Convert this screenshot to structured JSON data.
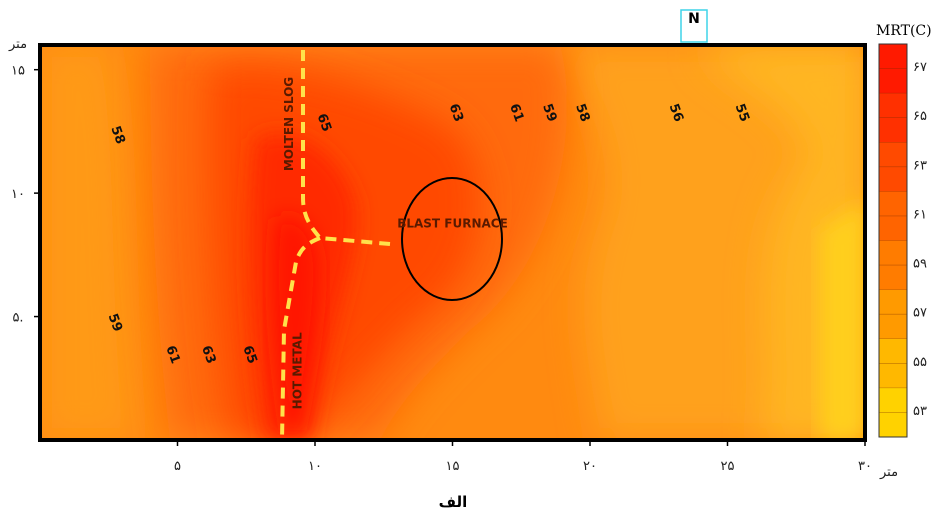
{
  "caption": "الف",
  "north_label": "N",
  "legend": {
    "title": "MRT(C)",
    "ticks": [
      "۶۷",
      "۶۵",
      "۶۳",
      "۶۱",
      "۵۹",
      "۵۷",
      "۵۵",
      "۵۳"
    ],
    "colors": [
      "#ff1a00",
      "#ff3000",
      "#ff4a00",
      "#ff6400",
      "#ff7c00",
      "#ff9a00",
      "#ffb800",
      "#ffd200"
    ]
  },
  "chart_data": {
    "type": "heatmap",
    "title": "",
    "xlabel": "متر",
    "ylabel": "متر",
    "xlim": [
      0,
      30
    ],
    "ylim": [
      0,
      16
    ],
    "x_ticks": [
      {
        "value": 5,
        "label": "۵"
      },
      {
        "value": 10,
        "label": "۱۰"
      },
      {
        "value": 15,
        "label": "۱۵"
      },
      {
        "value": 20,
        "label": "۲۰"
      },
      {
        "value": 25,
        "label": "۲۵"
      },
      {
        "value": 30,
        "label": "۳۰"
      }
    ],
    "y_ticks": [
      {
        "value": 5,
        "label": "۵."
      },
      {
        "value": 10,
        "label": "۱۰"
      },
      {
        "value": 15,
        "label": "۱۵"
      }
    ],
    "color_scale": {
      "min": 53,
      "max": 67
    },
    "contour_labels": [
      {
        "x": 2.7,
        "y": 12.3,
        "text": "58"
      },
      {
        "x": 2.6,
        "y": 4.7,
        "text": "59"
      },
      {
        "x": 4.7,
        "y": 3.4,
        "text": "61"
      },
      {
        "x": 6.0,
        "y": 3.4,
        "text": "63"
      },
      {
        "x": 7.5,
        "y": 3.4,
        "text": "65"
      },
      {
        "x": 10.2,
        "y": 12.8,
        "text": "65"
      },
      {
        "x": 15.0,
        "y": 13.2,
        "text": "63"
      },
      {
        "x": 17.2,
        "y": 13.2,
        "text": "61"
      },
      {
        "x": 18.4,
        "y": 13.2,
        "text": "59"
      },
      {
        "x": 19.6,
        "y": 13.2,
        "text": "58"
      },
      {
        "x": 23.0,
        "y": 13.2,
        "text": "56"
      },
      {
        "x": 25.4,
        "y": 13.2,
        "text": "55"
      }
    ],
    "annotations": [
      {
        "text": "MOLTEN SLOG",
        "x": 9.2,
        "y": 12.8
      },
      {
        "text": "HOT METAL",
        "x": 9.5,
        "y": 2.8
      },
      {
        "text": "BLAST FURNACE",
        "x": 15.0,
        "y": 8.6
      }
    ]
  }
}
